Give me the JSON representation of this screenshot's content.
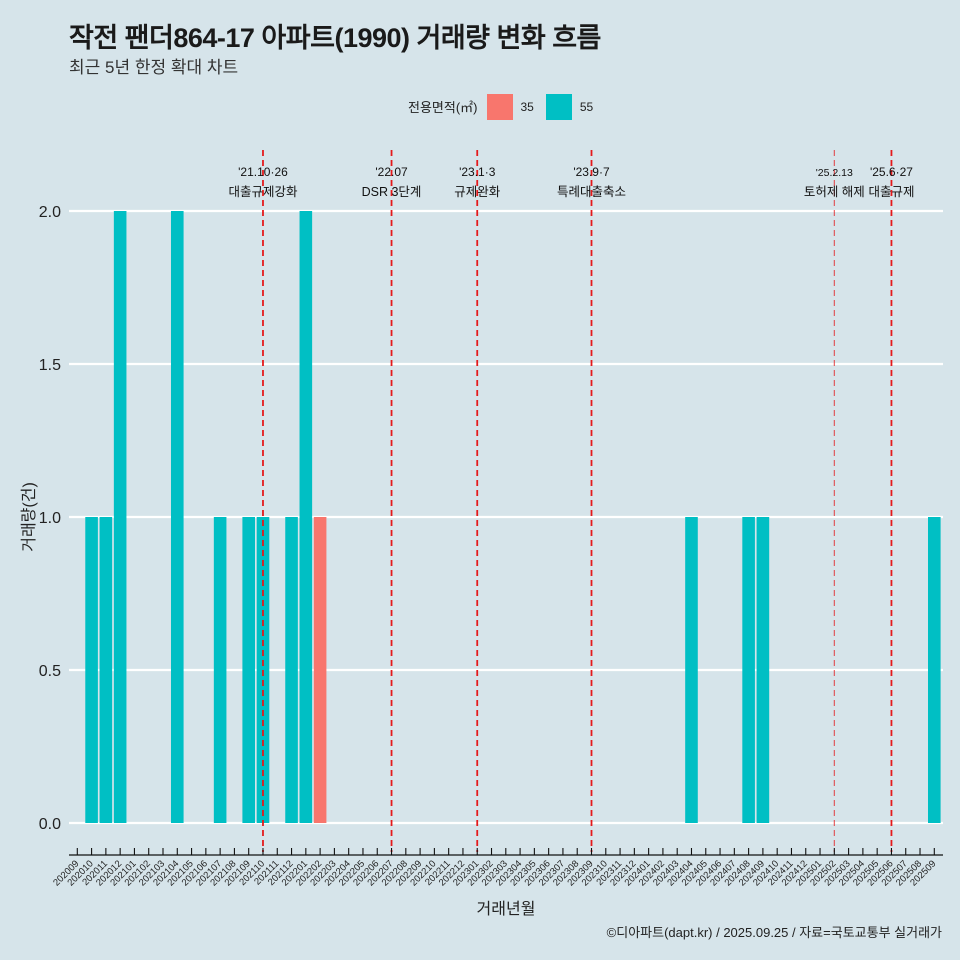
{
  "header": {
    "title": "작전 팬더864-17 아파트(1990) 거래량 변화 흐름",
    "subtitle": "최근 5년 한정 확대 차트"
  },
  "legend": {
    "title": "전용면적(㎡)",
    "items": [
      {
        "label": "35",
        "color": "#f8766d"
      },
      {
        "label": "55",
        "color": "#00bfc4"
      }
    ]
  },
  "caption": "©디아파트(dapt.kr) / 2025.09.25 / 자료=국토교통부 실거래가",
  "chart_data": {
    "type": "bar",
    "title": "작전 팬더864-17 아파트(1990) 거래량 변화 흐름",
    "subtitle": "최근 5년 한정 확대 차트",
    "xlabel": "거래년월",
    "ylabel": "거래량(건)",
    "ylim": [
      0,
      2
    ],
    "yticks": [
      "0.0",
      "0.5",
      "1.0",
      "1.5",
      "2.0"
    ],
    "ytick_values": [
      0,
      0.5,
      1.0,
      1.5,
      2.0
    ],
    "grid": true,
    "legend_position": "top",
    "categories": [
      "202009",
      "202010",
      "202011",
      "202012",
      "202101",
      "202102",
      "202103",
      "202104",
      "202105",
      "202106",
      "202107",
      "202108",
      "202109",
      "202110",
      "202111",
      "202112",
      "202201",
      "202202",
      "202203",
      "202204",
      "202205",
      "202206",
      "202207",
      "202208",
      "202209",
      "202210",
      "202211",
      "202212",
      "202301",
      "202302",
      "202303",
      "202304",
      "202305",
      "202306",
      "202307",
      "202308",
      "202309",
      "202310",
      "202311",
      "202312",
      "202401",
      "202402",
      "202403",
      "202404",
      "202405",
      "202406",
      "202407",
      "202408",
      "202409",
      "202410",
      "202411",
      "202412",
      "202501",
      "202502",
      "202503",
      "202504",
      "202505",
      "202506",
      "202507",
      "202508",
      "202509"
    ],
    "series": [
      {
        "name": "35",
        "color": "#f8766d",
        "points": [
          {
            "x": "202202",
            "y": 1
          }
        ]
      },
      {
        "name": "55",
        "color": "#00bfc4",
        "points": [
          {
            "x": "202010",
            "y": 1
          },
          {
            "x": "202011",
            "y": 1
          },
          {
            "x": "202012",
            "y": 2
          },
          {
            "x": "202104",
            "y": 2
          },
          {
            "x": "202107",
            "y": 1
          },
          {
            "x": "202109",
            "y": 1
          },
          {
            "x": "202110",
            "y": 1
          },
          {
            "x": "202112",
            "y": 1
          },
          {
            "x": "202201",
            "y": 2
          },
          {
            "x": "202404",
            "y": 1
          },
          {
            "x": "202408",
            "y": 1
          },
          {
            "x": "202409",
            "y": 1
          },
          {
            "x": "202509",
            "y": 1
          }
        ]
      }
    ],
    "events": [
      {
        "x": "202110",
        "date": "'21.10·26",
        "desc": "대출규제강화",
        "style": "major"
      },
      {
        "x": "202207",
        "date": "'22.07",
        "desc": "DSR 3단계",
        "style": "major"
      },
      {
        "x": "202301",
        "date": "'23.1·3",
        "desc": "규제완화",
        "style": "major"
      },
      {
        "x": "202309",
        "date": "'23.9·7",
        "desc": "특례대출축소",
        "style": "major"
      },
      {
        "x": "202502",
        "date": "'25.2.13",
        "desc": "토허제 해제",
        "style": "minor"
      },
      {
        "x": "202506",
        "date": "'25.6·27",
        "desc": "대출규제",
        "style": "major"
      }
    ],
    "event_line_color": "#e41a1c"
  }
}
